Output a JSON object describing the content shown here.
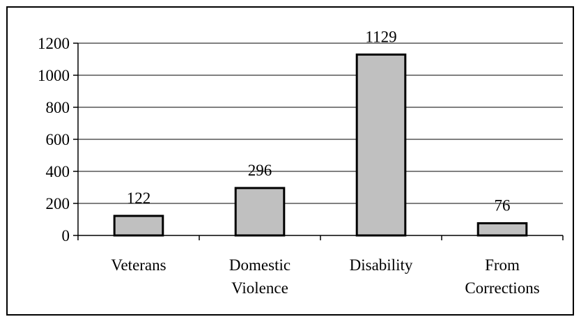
{
  "chart_data": {
    "type": "bar",
    "categories": [
      [
        "Veterans"
      ],
      [
        "Domestic",
        "Violence"
      ],
      [
        "Disability"
      ],
      [
        "From",
        "Corrections"
      ]
    ],
    "values": [
      122,
      296,
      1129,
      76
    ],
    "data_labels": [
      "122",
      "296",
      "1129",
      "76"
    ],
    "ylim": [
      0,
      1200
    ],
    "yticks": [
      {
        "value": 0,
        "label": "0"
      },
      {
        "value": 200,
        "label": "200"
      },
      {
        "value": 400,
        "label": "400"
      },
      {
        "value": 600,
        "label": "600"
      },
      {
        "value": 800,
        "label": "800"
      },
      {
        "value": 1000,
        "label": "1000"
      },
      {
        "value": 1200,
        "label": "1200"
      }
    ],
    "grid": true,
    "legend": false,
    "bar_color": "#c0c0c0",
    "bar_stroke": "#000000"
  }
}
